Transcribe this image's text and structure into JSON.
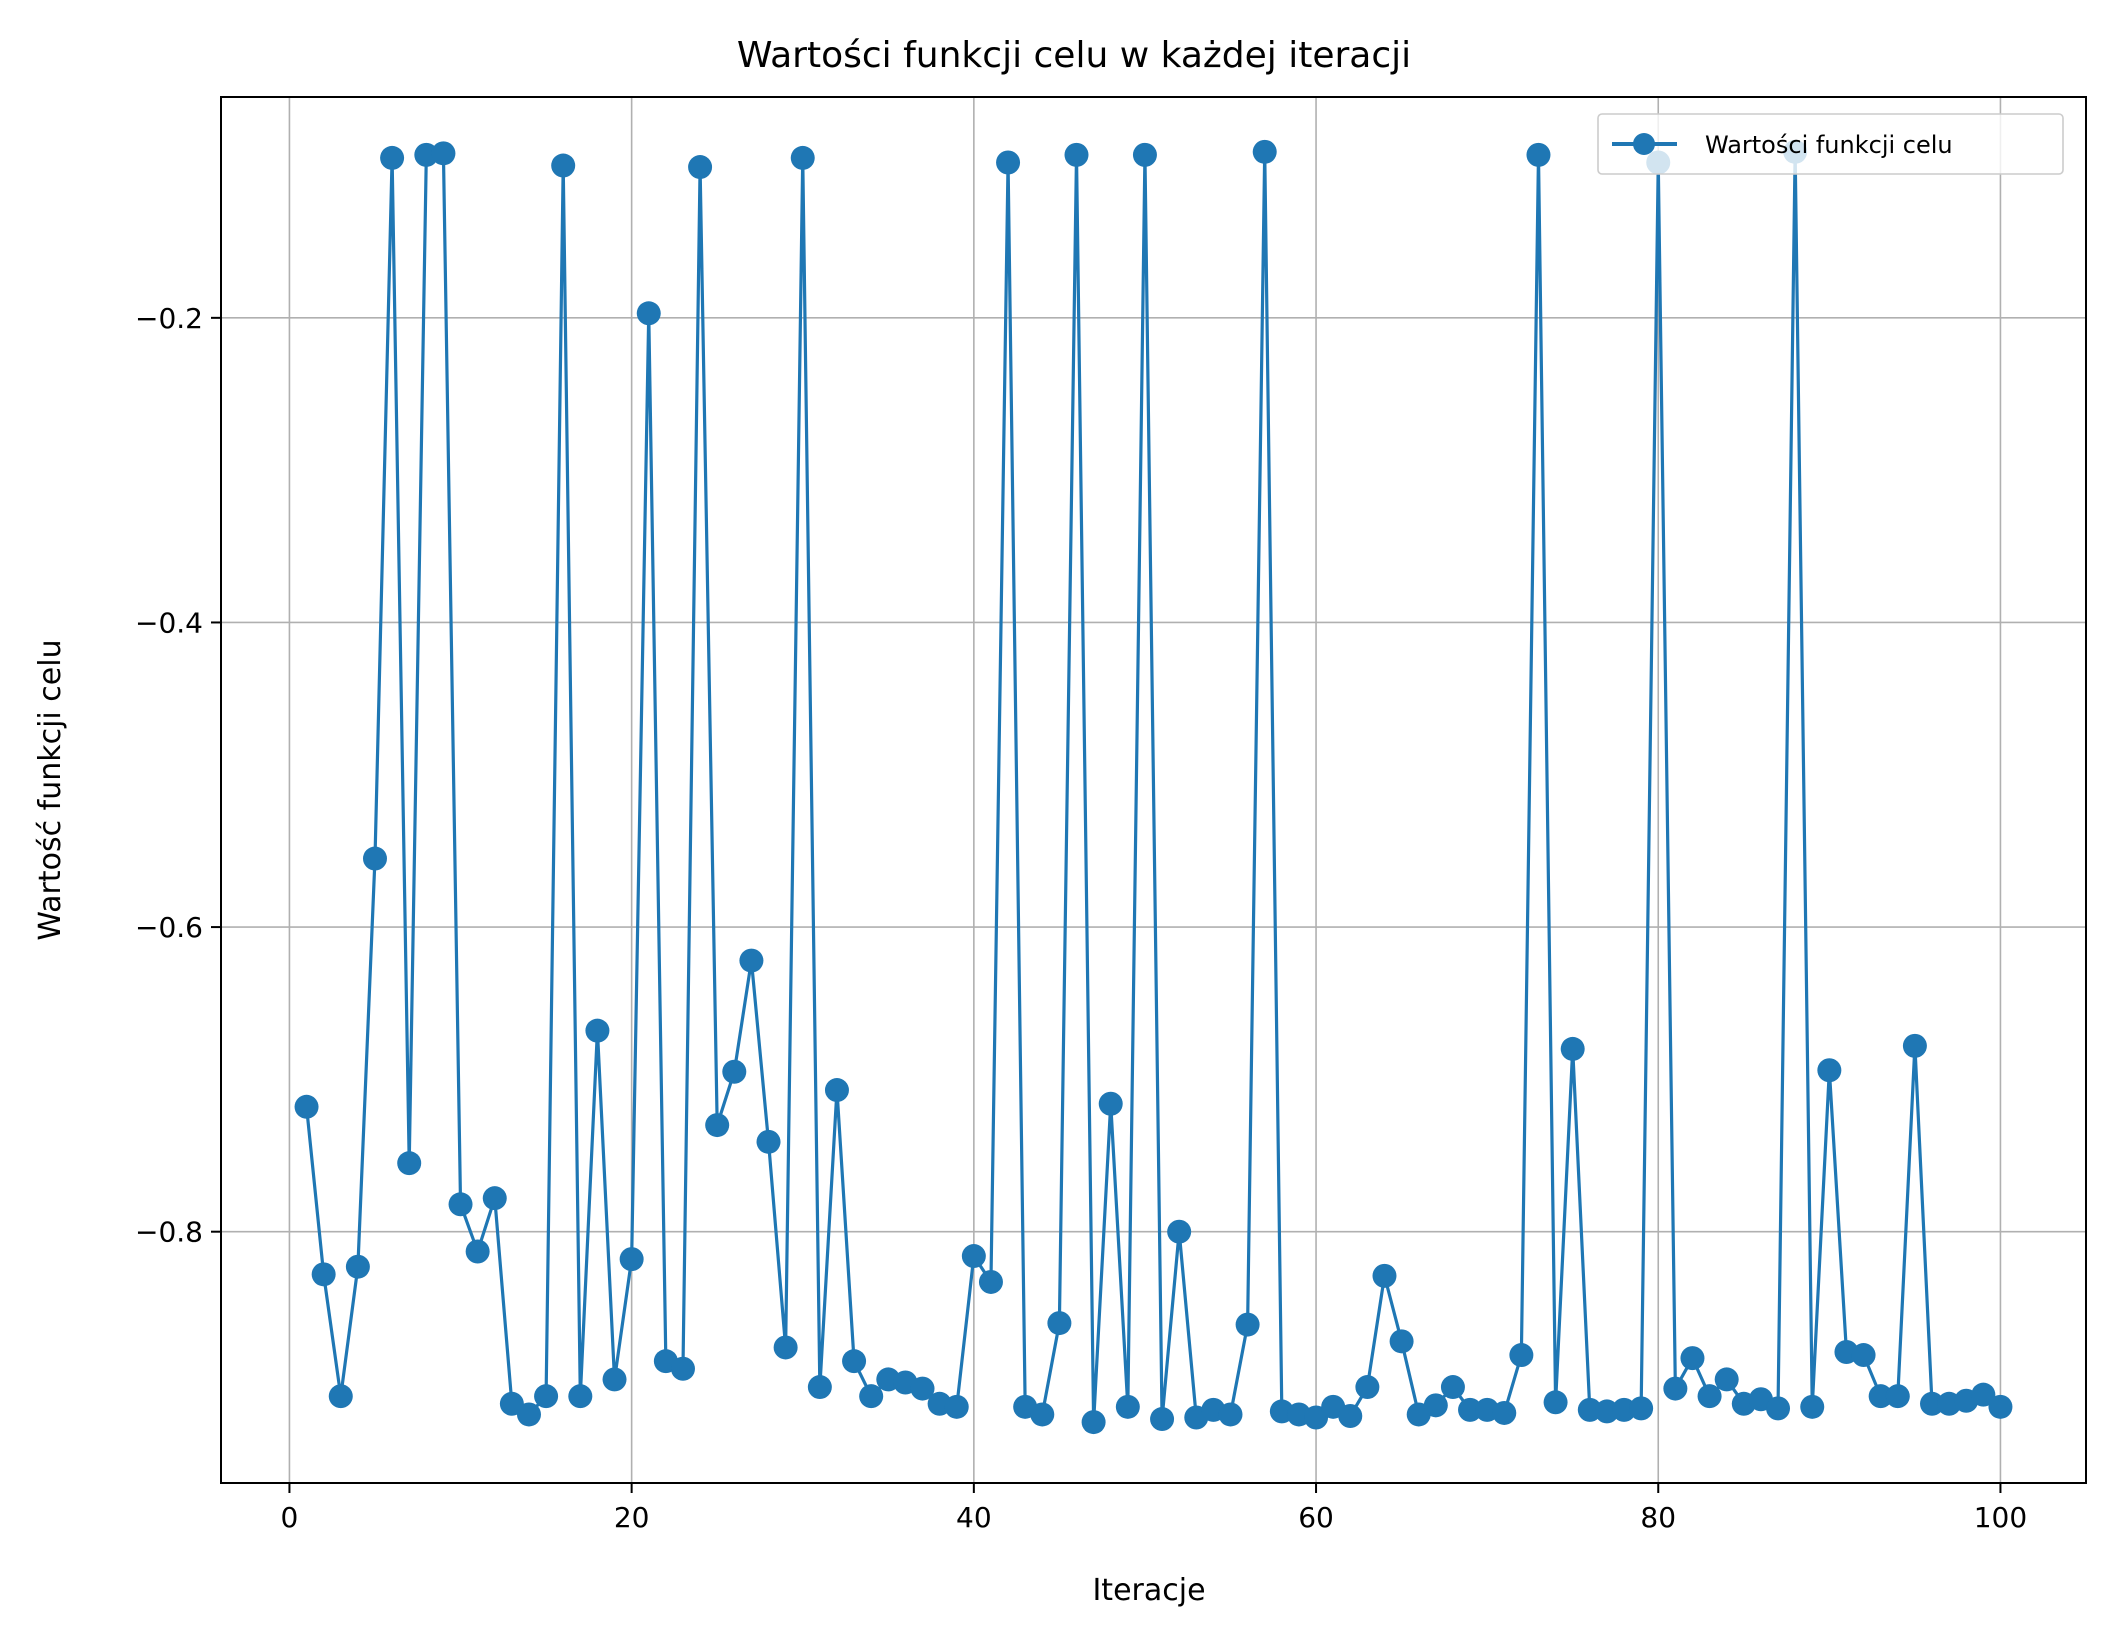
{
  "chart_data": {
    "type": "line",
    "title": "Wartości funkcji celu w każdej iteracji",
    "xlabel": "Iteracje",
    "ylabel": "Wartość funkcji celu",
    "xlim": [
      -4,
      105
    ],
    "ylim": [
      -0.965,
      -0.055
    ],
    "xticks": [
      0,
      20,
      40,
      60,
      80,
      100
    ],
    "xtick_labels": [
      "0",
      "20",
      "40",
      "60",
      "80",
      "100"
    ],
    "yticks": [
      -0.8,
      -0.6,
      -0.4,
      -0.2
    ],
    "ytick_labels": [
      "−0.8",
      "−0.6",
      "−0.4",
      "−0.2"
    ],
    "grid": true,
    "legend": "top-right",
    "line_color": "#1f77b4",
    "marker": "circle",
    "series": [
      {
        "name": "Wartości funkcji celu",
        "x": [
          1,
          2,
          3,
          4,
          5,
          6,
          7,
          8,
          9,
          10,
          11,
          12,
          13,
          14,
          15,
          16,
          17,
          18,
          19,
          20,
          21,
          22,
          23,
          24,
          25,
          26,
          27,
          28,
          29,
          30,
          31,
          32,
          33,
          34,
          35,
          36,
          37,
          38,
          39,
          40,
          41,
          42,
          43,
          44,
          45,
          46,
          47,
          48,
          49,
          50,
          51,
          52,
          53,
          54,
          55,
          56,
          57,
          58,
          59,
          60,
          61,
          62,
          63,
          64,
          65,
          66,
          67,
          68,
          69,
          70,
          71,
          72,
          73,
          74,
          75,
          76,
          77,
          78,
          79,
          80,
          81,
          82,
          83,
          84,
          85,
          86,
          87,
          88,
          89,
          90,
          91,
          92,
          93,
          94,
          95,
          96,
          97,
          98,
          99,
          100
        ],
        "values": [
          -0.718,
          -0.828,
          -0.908,
          -0.823,
          -0.555,
          -0.095,
          -0.755,
          -0.093,
          -0.092,
          -0.782,
          -0.813,
          -0.778,
          -0.913,
          -0.92,
          -0.908,
          -0.1,
          -0.908,
          -0.668,
          -0.897,
          -0.818,
          -0.197,
          -0.885,
          -0.89,
          -0.101,
          -0.73,
          -0.695,
          -0.622,
          -0.741,
          -0.876,
          -0.095,
          -0.902,
          -0.707,
          -0.885,
          -0.908,
          -0.897,
          -0.899,
          -0.903,
          -0.913,
          -0.915,
          -0.816,
          -0.833,
          -0.098,
          -0.915,
          -0.92,
          -0.86,
          -0.093,
          -0.925,
          -0.716,
          -0.915,
          -0.093,
          -0.923,
          -0.8,
          -0.922,
          -0.917,
          -0.92,
          -0.861,
          -0.091,
          -0.918,
          -0.92,
          -0.922,
          -0.915,
          -0.921,
          -0.902,
          -0.829,
          -0.872,
          -0.92,
          -0.914,
          -0.902,
          -0.917,
          -0.917,
          -0.919,
          -0.881,
          -0.093,
          -0.912,
          -0.68,
          -0.917,
          -0.918,
          -0.917,
          -0.916,
          -0.098,
          -0.903,
          -0.883,
          -0.908,
          -0.897,
          -0.913,
          -0.91,
          -0.916,
          -0.091,
          -0.915,
          -0.694,
          -0.879,
          -0.881,
          -0.908,
          -0.908,
          -0.678,
          -0.913,
          -0.913,
          -0.911,
          -0.907,
          -0.915
        ]
      }
    ]
  }
}
